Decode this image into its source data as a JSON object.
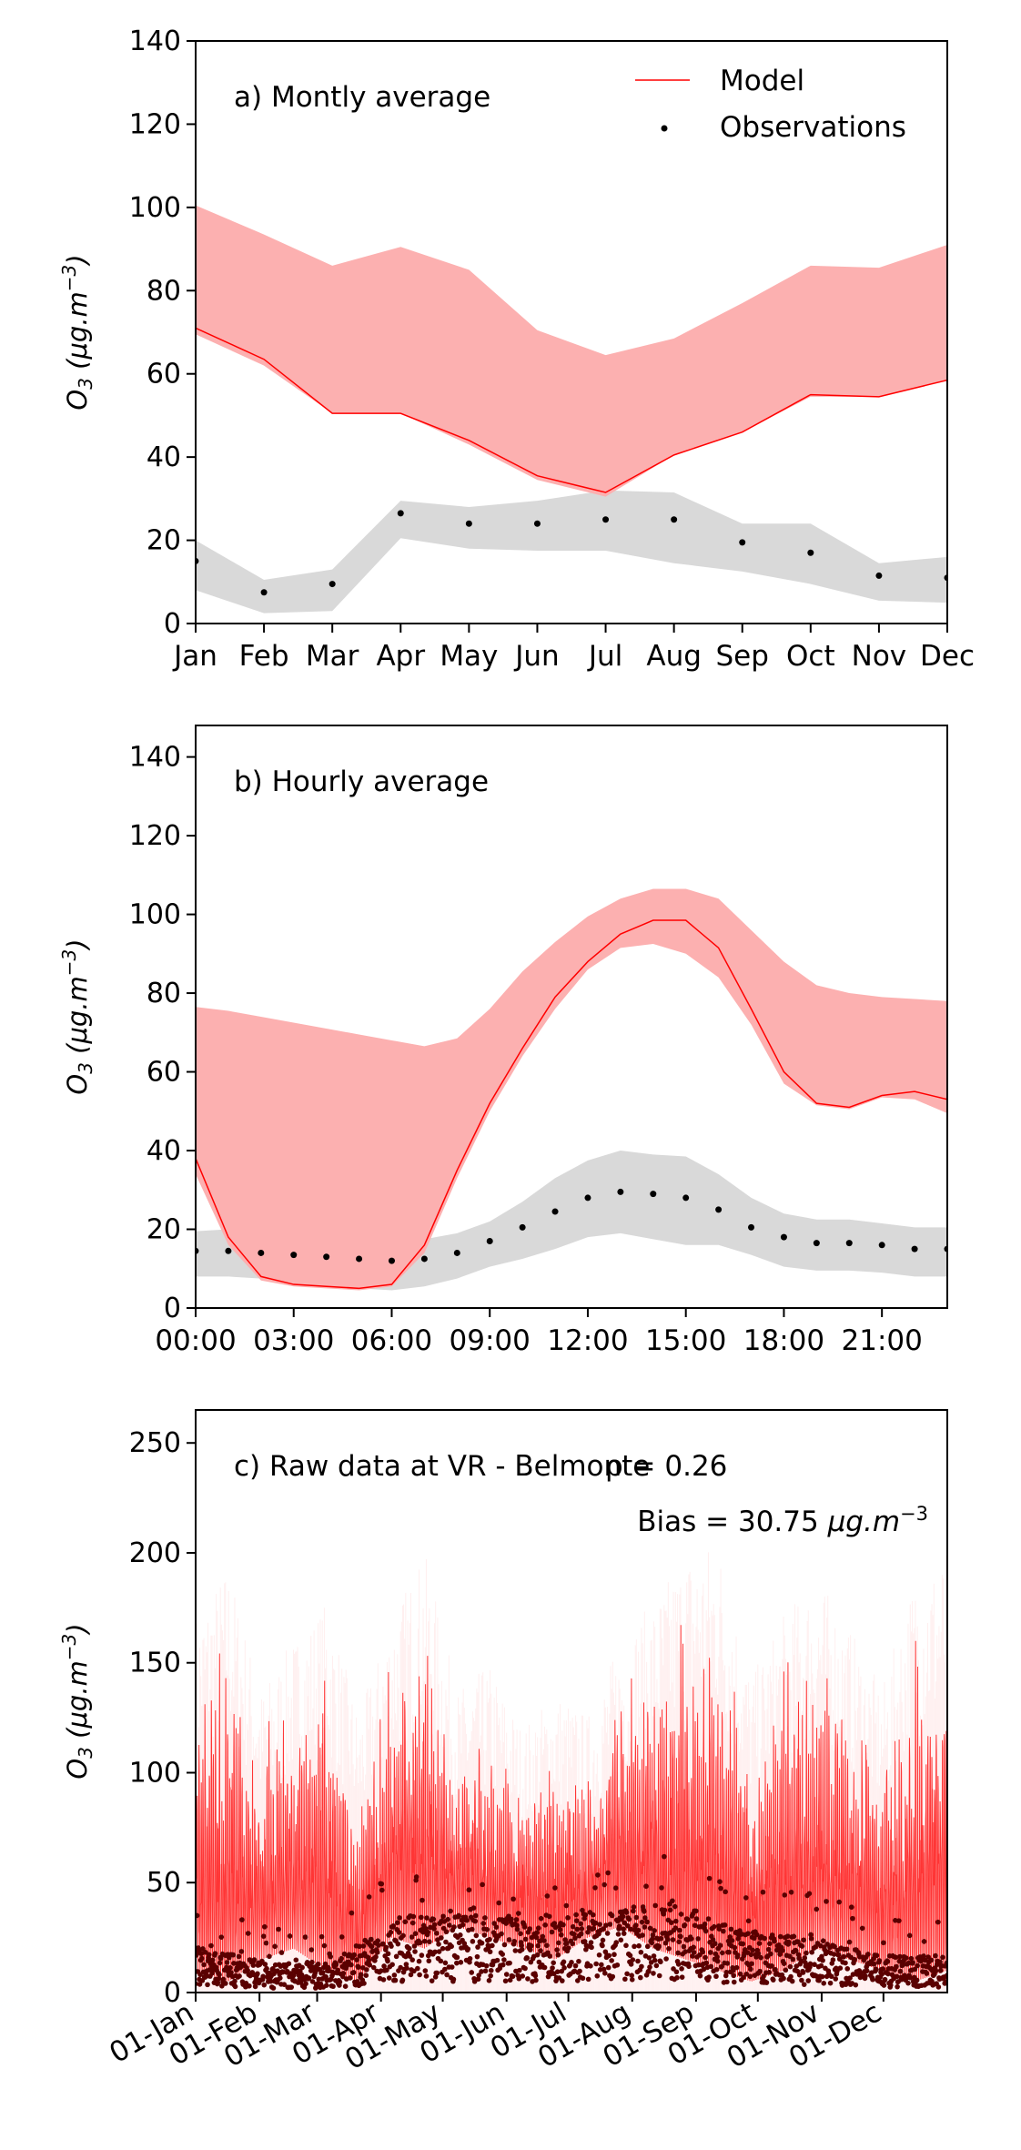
{
  "chart_data": [
    {
      "type": "line",
      "title": "a) Montly average",
      "ylabel": "O3 (μg.m−3)",
      "ylabel_parts": {
        "base": "O",
        "sub": "3",
        "unit": " (μg.m",
        "sup": "−3",
        "close": ")"
      },
      "ylim": [
        0,
        140
      ],
      "yticks": [
        0,
        20,
        40,
        60,
        80,
        100,
        120,
        140
      ],
      "categories": [
        "Jan",
        "Feb",
        "Mar",
        "Apr",
        "May",
        "Jun",
        "Jul",
        "Aug",
        "Sep",
        "Oct",
        "Nov",
        "Dec"
      ],
      "xtick_labels": [
        "Jan",
        "Feb",
        "Mar",
        "Apr",
        "May",
        "Jun",
        "Jul",
        "Aug",
        "Sep",
        "Oct",
        "Nov",
        "Dec"
      ],
      "legend": {
        "placement": "top-right",
        "model_label": "Model",
        "obs_label": "Observations"
      },
      "series": [
        {
          "name": "Model",
          "values": [
            71,
            63.5,
            50.5,
            50.5,
            44,
            35.5,
            31.5,
            40.5,
            46,
            55,
            54.5,
            58.5
          ],
          "band_low": [
            69.5,
            62,
            50.5,
            50.5,
            43,
            34.5,
            30.5,
            40.5,
            46,
            54.5,
            54.5,
            58.5
          ],
          "band_high": [
            100.5,
            93.5,
            86,
            90.5,
            85,
            70.5,
            64.5,
            68.5,
            77,
            86,
            85.5,
            91
          ]
        },
        {
          "name": "Observations",
          "values": [
            15,
            7.5,
            9.5,
            26.5,
            24,
            24,
            25,
            25,
            19.5,
            17,
            11.5,
            11
          ],
          "band_low": [
            8,
            2.5,
            3,
            20.5,
            18,
            17.5,
            17.5,
            14.5,
            12.5,
            9.5,
            5.5,
            5
          ],
          "band_high": [
            20,
            10.5,
            13,
            29.5,
            28,
            29.5,
            32,
            31.5,
            24,
            24,
            14.5,
            16
          ]
        }
      ],
      "colors": {
        "model_line": "#ff0000",
        "model_band": "#fcb0b0",
        "obs_band": "#d9d9d9",
        "obs_point": "#000000"
      }
    },
    {
      "type": "line",
      "title": "b) Hourly average",
      "ylabel": "O3 (μg.m−3)",
      "ylabel_parts": {
        "base": "O",
        "sub": "3",
        "unit": " (μg.m",
        "sup": "−3",
        "close": ")"
      },
      "ylim": [
        0,
        148
      ],
      "yticks": [
        0,
        20,
        40,
        60,
        80,
        100,
        120,
        140
      ],
      "x": [
        0,
        1,
        2,
        3,
        4,
        5,
        6,
        7,
        8,
        9,
        10,
        11,
        12,
        13,
        14,
        15,
        16,
        17,
        18,
        19,
        20,
        21,
        22,
        23
      ],
      "xticks": [
        0,
        3,
        6,
        9,
        12,
        15,
        18,
        21
      ],
      "xtick_labels": [
        "00:00",
        "03:00",
        "06:00",
        "09:00",
        "12:00",
        "15:00",
        "18:00",
        "21:00"
      ],
      "series": [
        {
          "name": "Model",
          "values": [
            38,
            18,
            8,
            6,
            5.5,
            5,
            6,
            16,
            35,
            52,
            66,
            79,
            88,
            95,
            98.5,
            98.5,
            91.5,
            76,
            60,
            52,
            51,
            54,
            55,
            53
          ],
          "band_low": [
            34,
            16,
            7,
            5.5,
            5,
            4.5,
            5.5,
            14,
            33,
            50,
            64,
            76,
            86,
            91.5,
            92.5,
            90,
            84,
            72,
            57,
            51.5,
            50.5,
            53.5,
            53,
            49.5
          ],
          "band_high": [
            76.5,
            75.5,
            74,
            72.5,
            71,
            69.5,
            68,
            66.5,
            68.5,
            76,
            85.5,
            93,
            99.5,
            104,
            106.5,
            106.5,
            104,
            96,
            88,
            82,
            80,
            79,
            78.5,
            78
          ]
        },
        {
          "name": "Observations",
          "values": [
            14.5,
            14.5,
            14,
            13.5,
            13,
            12.5,
            12,
            12.5,
            14,
            17,
            20.5,
            24.5,
            28,
            29.5,
            29,
            28,
            25,
            20.5,
            18,
            16.5,
            16.5,
            16,
            15,
            15
          ],
          "band_low": [
            8,
            8,
            7.5,
            6.5,
            5.5,
            5,
            4.5,
            5.5,
            7.5,
            10.5,
            12.5,
            15,
            18,
            19,
            17.5,
            16,
            16,
            13.5,
            10.5,
            9.5,
            9.5,
            9,
            8,
            8
          ],
          "band_high": [
            19.5,
            20,
            19.5,
            19,
            18.5,
            18,
            18,
            17.5,
            19,
            22,
            27,
            33,
            37.5,
            40,
            39,
            38.5,
            34,
            28,
            24,
            22.5,
            22.5,
            21.5,
            20.5,
            20.5
          ]
        }
      ],
      "colors": {
        "model_line": "#ff0000",
        "model_band": "#fcb0b0",
        "obs_band": "#d9d9d9",
        "obs_point": "#000000"
      }
    },
    {
      "type": "line",
      "title": "c) Raw data at VR - Belmonte",
      "annotation_rho": "ρ = 0.26",
      "annotation_bias": {
        "prefix": "Bias = 30.75 ",
        "unit": "μg.m",
        "sup": "−3"
      },
      "ylabel": "O3 (μg.m−3)",
      "ylabel_parts": {
        "base": "O",
        "sub": "3",
        "unit": " (μg.m",
        "sup": "−3",
        "close": ")"
      },
      "ylim": [
        0,
        265
      ],
      "yticks": [
        0,
        50,
        100,
        150,
        200,
        250
      ],
      "x_range_days": [
        0,
        365
      ],
      "xticks_day_of_year": [
        0,
        31,
        59,
        90,
        120,
        151,
        181,
        212,
        243,
        273,
        304,
        334
      ],
      "xtick_labels": [
        "01-Jan",
        "01-Feb",
        "01-Mar",
        "01-Apr",
        "01-May",
        "01-Jun",
        "01-Jul",
        "01-Aug",
        "01-Sep",
        "01-Oct",
        "01-Nov",
        "01-Dec"
      ],
      "series": [
        {
          "name": "Model",
          "approx_daily_max": [
            150,
            170,
            120,
            140,
            155,
            110,
            150,
            175,
            120,
            130,
            105,
            120,
            110,
            140,
            155,
            175,
            180,
            125,
            150,
            165,
            145,
            120,
            165,
            175
          ],
          "approx_daily_min": [
            10,
            5,
            15,
            20,
            10,
            5,
            25,
            20,
            30,
            25,
            20,
            15,
            25,
            30,
            20,
            15,
            10,
            5,
            10,
            20,
            15,
            10,
            5,
            10
          ]
        },
        {
          "name": "Observations",
          "approx_typical": [
            15,
            10,
            10,
            25,
            25,
            25,
            28,
            30,
            20,
            18,
            12,
            12
          ],
          "approx_peak": [
            40,
            30,
            28,
            60,
            50,
            50,
            55,
            65,
            45,
            48,
            35,
            45
          ]
        }
      ],
      "colors": {
        "model_line": "#ff2020",
        "model_glow": "#ffd0d0",
        "obs_point": "#5a0000"
      }
    }
  ]
}
